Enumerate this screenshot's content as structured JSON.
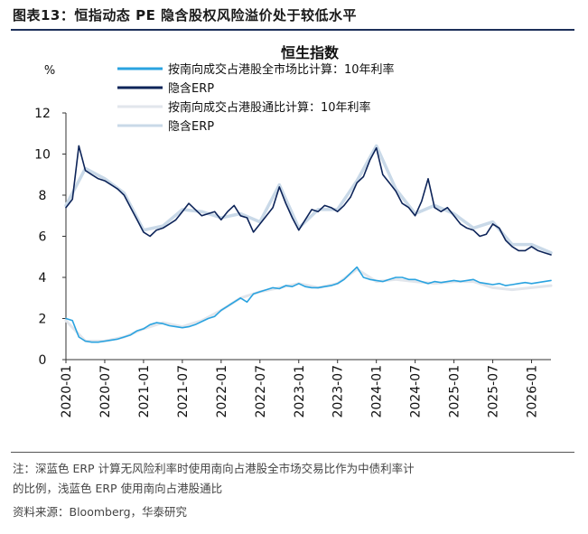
{
  "figure": {
    "label": "图表13：",
    "title": "恒指动态 PE 隐含股权风险溢价处于较低水平"
  },
  "notes": {
    "line1": "注：深蓝色 ERP 计算无风险利率时使用南向占港股全市场交易比作为中债利率计",
    "line2": "的比例，浅蓝色 ERP 使用南向占港股通比",
    "source": "资料来源：Bloomberg，华泰研究"
  },
  "chart_data": {
    "type": "line",
    "title": "恒生指数",
    "ylabel": "%",
    "ylim": [
      0,
      12
    ],
    "yticks": [
      0,
      2,
      4,
      6,
      8,
      10,
      12
    ],
    "xticks": [
      "2020-01",
      "2020-07",
      "2021-01",
      "2021-07",
      "2022-01",
      "2022-07",
      "2023-01",
      "2023-07",
      "2024-01",
      "2024-07",
      "2025-01",
      "2025-07",
      "2026-01"
    ],
    "x_range": [
      "2020-01",
      "2026-04"
    ],
    "legend_position": "top-left",
    "grid": false,
    "colors": {
      "rate_market": "#2aa3e0",
      "erp_market": "#0d2459",
      "rate_connect": "#e2e6ec",
      "erp_connect": "#c9d9e8"
    },
    "series": [
      {
        "name": "按南向成交占港股全市场比计算：10年利率",
        "key": "rate_market",
        "x": [
          "2020-01",
          "2020-02",
          "2020-03",
          "2020-04",
          "2020-05",
          "2020-06",
          "2020-07",
          "2020-08",
          "2020-09",
          "2020-10",
          "2020-11",
          "2020-12",
          "2021-01",
          "2021-02",
          "2021-03",
          "2021-04",
          "2021-05",
          "2021-06",
          "2021-07",
          "2021-08",
          "2021-09",
          "2021-10",
          "2021-11",
          "2021-12",
          "2022-01",
          "2022-02",
          "2022-03",
          "2022-04",
          "2022-05",
          "2022-06",
          "2022-07",
          "2022-08",
          "2022-09",
          "2022-10",
          "2022-11",
          "2022-12",
          "2023-01",
          "2023-02",
          "2023-03",
          "2023-04",
          "2023-05",
          "2023-06",
          "2023-07",
          "2023-08",
          "2023-09",
          "2023-10",
          "2023-11",
          "2023-12",
          "2024-01",
          "2024-02",
          "2024-03",
          "2024-04",
          "2024-05",
          "2024-06",
          "2024-07",
          "2024-08",
          "2024-09",
          "2024-10",
          "2024-11",
          "2024-12",
          "2025-01",
          "2025-02",
          "2025-03",
          "2025-04",
          "2025-05",
          "2025-06",
          "2025-07",
          "2025-08",
          "2025-09",
          "2025-10",
          "2025-11",
          "2025-12",
          "2026-01",
          "2026-02",
          "2026-03",
          "2026-04"
        ],
        "values": [
          2.0,
          1.9,
          1.1,
          0.9,
          0.85,
          0.85,
          0.9,
          0.95,
          1.0,
          1.1,
          1.2,
          1.4,
          1.5,
          1.7,
          1.8,
          1.75,
          1.65,
          1.6,
          1.55,
          1.6,
          1.7,
          1.85,
          2.0,
          2.1,
          2.4,
          2.6,
          2.8,
          3.0,
          2.8,
          3.2,
          3.3,
          3.4,
          3.5,
          3.45,
          3.6,
          3.55,
          3.7,
          3.55,
          3.5,
          3.5,
          3.55,
          3.6,
          3.7,
          3.9,
          4.2,
          4.5,
          4.0,
          3.9,
          3.85,
          3.8,
          3.9,
          4.0,
          4.0,
          3.9,
          3.9,
          3.8,
          3.7,
          3.8,
          3.75,
          3.8,
          3.85,
          3.8,
          3.85,
          3.9,
          3.75,
          3.7,
          3.65,
          3.7,
          3.6,
          3.65,
          3.7,
          3.75,
          3.7,
          3.75,
          3.8,
          3.85
        ]
      },
      {
        "name": "隐含ERP",
        "key": "erp_market",
        "x": [
          "2020-01",
          "2020-02",
          "2020-03",
          "2020-04",
          "2020-05",
          "2020-06",
          "2020-07",
          "2020-08",
          "2020-09",
          "2020-10",
          "2020-11",
          "2020-12",
          "2021-01",
          "2021-02",
          "2021-03",
          "2021-04",
          "2021-05",
          "2021-06",
          "2021-07",
          "2021-08",
          "2021-09",
          "2021-10",
          "2021-11",
          "2021-12",
          "2022-01",
          "2022-02",
          "2022-03",
          "2022-04",
          "2022-05",
          "2022-06",
          "2022-07",
          "2022-08",
          "2022-09",
          "2022-10",
          "2022-11",
          "2022-12",
          "2023-01",
          "2023-02",
          "2023-03",
          "2023-04",
          "2023-05",
          "2023-06",
          "2023-07",
          "2023-08",
          "2023-09",
          "2023-10",
          "2023-11",
          "2023-12",
          "2024-01",
          "2024-02",
          "2024-03",
          "2024-04",
          "2024-05",
          "2024-06",
          "2024-07",
          "2024-08",
          "2024-09",
          "2024-10",
          "2024-11",
          "2024-12",
          "2025-01",
          "2025-02",
          "2025-03",
          "2025-04",
          "2025-05",
          "2025-06",
          "2025-07",
          "2025-08",
          "2025-09",
          "2025-10",
          "2025-11",
          "2025-12",
          "2026-01",
          "2026-02",
          "2026-03",
          "2026-04"
        ],
        "values": [
          7.4,
          7.8,
          10.4,
          9.2,
          9.0,
          8.8,
          8.7,
          8.5,
          8.3,
          8.0,
          7.4,
          6.8,
          6.2,
          6.0,
          6.3,
          6.4,
          6.6,
          6.8,
          7.2,
          7.6,
          7.3,
          7.0,
          7.1,
          7.2,
          6.8,
          7.2,
          7.5,
          7.0,
          6.9,
          6.2,
          6.6,
          7.0,
          7.4,
          8.4,
          7.6,
          6.9,
          6.3,
          6.8,
          7.3,
          7.2,
          7.5,
          7.4,
          7.2,
          7.5,
          7.9,
          8.6,
          8.9,
          9.7,
          10.3,
          9.0,
          8.6,
          8.2,
          7.6,
          7.4,
          7.0,
          7.7,
          8.8,
          7.4,
          7.2,
          7.4,
          7.0,
          6.6,
          6.4,
          6.3,
          6.0,
          6.1,
          6.6,
          6.4,
          5.8,
          5.5,
          5.3,
          5.3,
          5.5,
          5.3,
          5.2,
          5.1
        ]
      },
      {
        "name": "按南向成交占港股通比计算：10年利率",
        "key": "rate_connect",
        "x": [
          "2020-01",
          "2020-04",
          "2020-07",
          "2020-10",
          "2021-01",
          "2021-04",
          "2021-07",
          "2021-10",
          "2022-01",
          "2022-04",
          "2022-07",
          "2022-10",
          "2023-01",
          "2023-04",
          "2023-07",
          "2023-10",
          "2024-01",
          "2024-04",
          "2024-07",
          "2024-10",
          "2025-01",
          "2025-04",
          "2025-07",
          "2025-10",
          "2026-01",
          "2026-04"
        ],
        "values": [
          1.9,
          0.9,
          0.9,
          1.1,
          1.5,
          1.8,
          1.6,
          1.9,
          2.4,
          3.0,
          3.3,
          3.5,
          3.7,
          3.5,
          3.7,
          4.4,
          3.8,
          3.9,
          3.8,
          3.7,
          3.8,
          3.8,
          3.5,
          3.4,
          3.5,
          3.6
        ]
      },
      {
        "name": "隐含ERP",
        "key": "erp_connect",
        "x": [
          "2020-01",
          "2020-04",
          "2020-07",
          "2020-10",
          "2021-01",
          "2021-04",
          "2021-07",
          "2021-10",
          "2022-01",
          "2022-04",
          "2022-07",
          "2022-10",
          "2023-01",
          "2023-04",
          "2023-07",
          "2023-10",
          "2024-01",
          "2024-04",
          "2024-07",
          "2024-10",
          "2025-01",
          "2025-04",
          "2025-07",
          "2025-10",
          "2026-01",
          "2026-04"
        ],
        "values": [
          7.5,
          9.3,
          8.8,
          8.1,
          6.3,
          6.5,
          7.3,
          7.2,
          6.9,
          7.1,
          6.7,
          8.5,
          6.4,
          7.3,
          7.3,
          8.7,
          10.4,
          8.3,
          7.1,
          7.5,
          7.1,
          6.4,
          6.7,
          5.6,
          5.6,
          5.2
        ]
      }
    ]
  }
}
